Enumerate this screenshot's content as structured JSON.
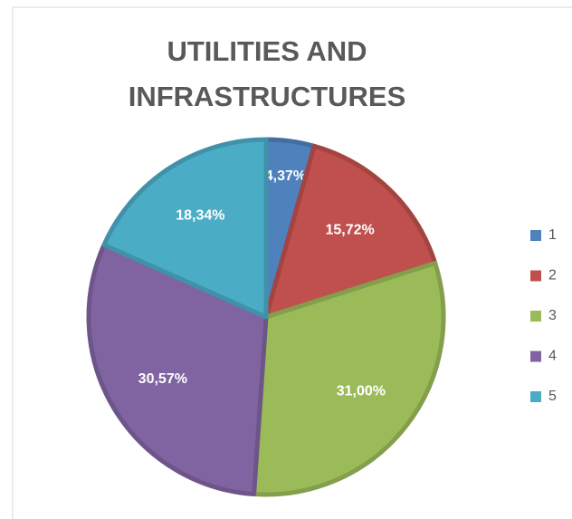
{
  "chart_data": {
    "type": "pie",
    "title": "UTILITIES AND INFRASTRUCTURES",
    "categories": [
      "1",
      "2",
      "3",
      "4",
      "5"
    ],
    "values": [
      4.37,
      15.72,
      31,
      30.57,
      18.34
    ],
    "value_labels": [
      "4,37%",
      "15,72%",
      "31,00%",
      "30,57%",
      "18,34%"
    ],
    "colors": [
      "#4f81bd",
      "#c0504d",
      "#9bbb59",
      "#8064a2",
      "#4bacc6"
    ],
    "legend": "right"
  }
}
